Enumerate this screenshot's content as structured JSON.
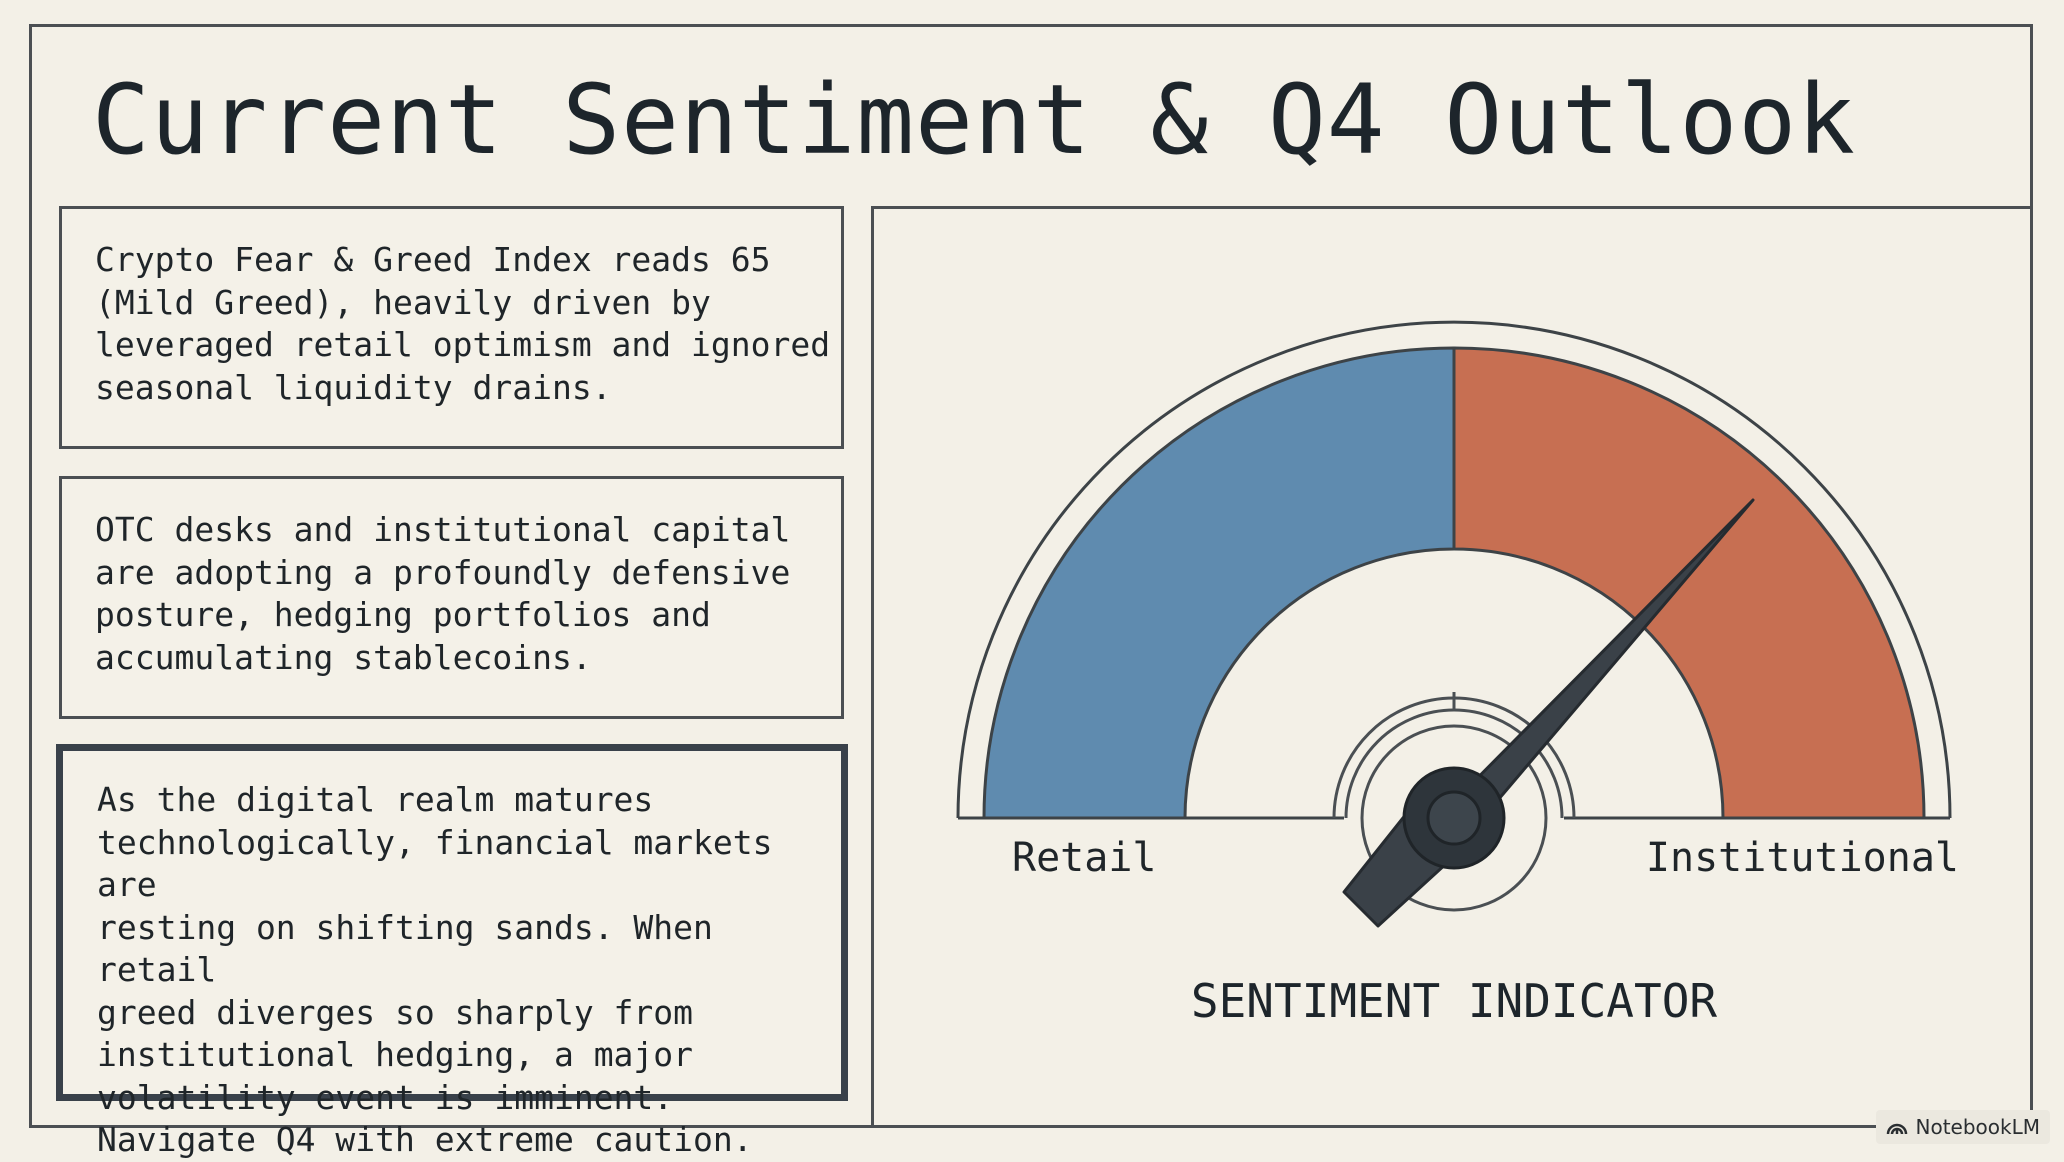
{
  "title": "Current Sentiment & Q4 Outlook",
  "cards": [
    {
      "text": "Crypto Fear & Greed Index reads 65\n(Mild Greed), heavily driven by\nleveraged retail optimism and ignored\nseasonal liquidity drains."
    },
    {
      "text": "OTC desks and institutional capital\nare adopting a profoundly defensive\nposture, hedging portfolios and\naccumulating stablecoins."
    },
    {
      "text": "As the digital realm matures\ntechnologically, financial markets are\nresting on shifting sands. When retail\ngreed diverges so sharply from\ninstitutional hedging, a major\nvolatility event is imminent.\nNavigate Q4 with extreme caution."
    }
  ],
  "gauge": {
    "left_label": "Retail",
    "right_label": "Institutional",
    "caption": "SENTIMENT INDICATOR",
    "left_color": "#5f8baf",
    "right_color": "#c76f52",
    "needle_color": "#3a4148"
  },
  "watermark": {
    "text": "NotebookLM",
    "icon": "notebooklm-logo-icon"
  }
}
